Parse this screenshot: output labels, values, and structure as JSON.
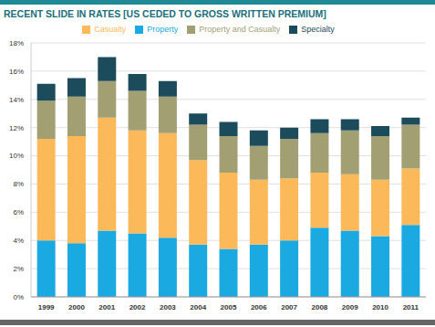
{
  "chart_data": {
    "type": "bar",
    "title": "RECENT SLIDE IN RATES [US CEDED TO GROSS WRITTEN PREMIUM]",
    "categories": [
      "1999",
      "2000",
      "2001",
      "2002",
      "2003",
      "2004",
      "2005",
      "2006",
      "2007",
      "2008",
      "2009",
      "2010",
      "2011"
    ],
    "series": [
      {
        "name": "Property",
        "color": "#1aa9e0",
        "values": [
          4.0,
          3.8,
          4.7,
          4.5,
          4.2,
          3.7,
          3.4,
          3.7,
          4.0,
          4.9,
          4.7,
          4.3,
          5.1
        ]
      },
      {
        "name": "Casualty",
        "color": "#fbb95a",
        "values": [
          7.2,
          7.6,
          8.0,
          7.3,
          7.4,
          6.0,
          5.4,
          4.6,
          4.4,
          3.9,
          4.0,
          4.0,
          4.0
        ]
      },
      {
        "name": "Property and Casualty",
        "color": "#a29f73",
        "values": [
          2.7,
          2.8,
          2.6,
          2.8,
          2.6,
          2.5,
          2.6,
          2.4,
          2.8,
          2.8,
          3.1,
          3.1,
          3.1
        ]
      },
      {
        "name": "Specialty",
        "color": "#1c4b5b",
        "values": [
          1.2,
          1.3,
          1.7,
          1.2,
          1.1,
          0.8,
          1.0,
          1.1,
          0.8,
          1.0,
          0.8,
          0.7,
          0.5
        ]
      }
    ],
    "ylim": [
      0,
      18
    ],
    "yticks": [
      {
        "value": 0,
        "label": "0%"
      },
      {
        "value": 2,
        "label": "2%"
      },
      {
        "value": 4,
        "label": "4%"
      },
      {
        "value": 6,
        "label": "6%"
      },
      {
        "value": 8,
        "label": "8%"
      },
      {
        "value": 10,
        "label": "10%"
      },
      {
        "value": 12,
        "label": "12%"
      },
      {
        "value": 14,
        "label": "14%"
      },
      {
        "value": 16,
        "label": "16%"
      },
      {
        "value": 18,
        "label": "18%"
      }
    ],
    "stacked": true,
    "grid": true,
    "legend": "top"
  }
}
